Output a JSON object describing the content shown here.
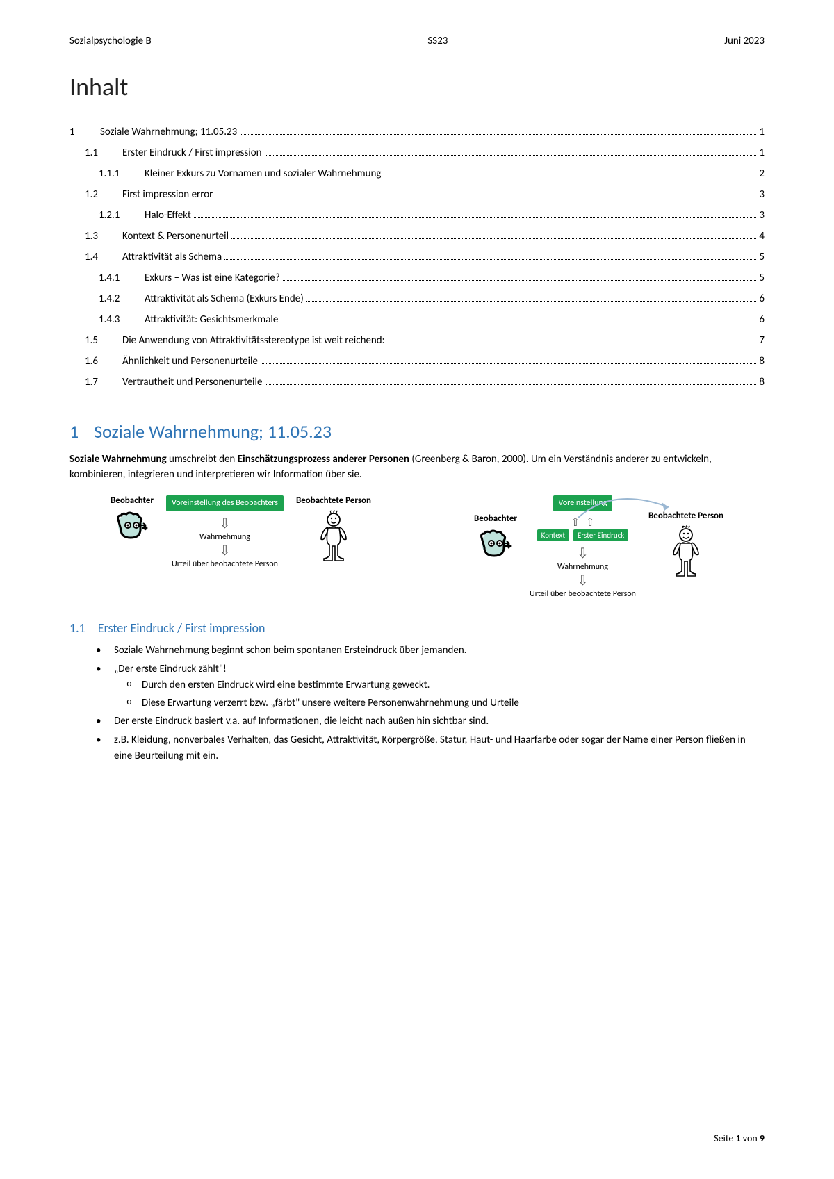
{
  "header": {
    "left": "Sozialpsychologie B",
    "center": "SS23",
    "right": "Juni 2023"
  },
  "toc_heading": "Inhalt",
  "toc": [
    {
      "level": 1,
      "num": "1",
      "title": "Soziale Wahrnehmung; 11.05.23",
      "page": "1"
    },
    {
      "level": 2,
      "num": "1.1",
      "title": "Erster Eindruck / First impression",
      "page": "1"
    },
    {
      "level": 3,
      "num": "1.1.1",
      "title": "Kleiner Exkurs zu Vornamen und sozialer Wahrnehmung",
      "page": "2"
    },
    {
      "level": 2,
      "num": "1.2",
      "title": "First impression error",
      "page": "3"
    },
    {
      "level": 3,
      "num": "1.2.1",
      "title": "Halo-Effekt",
      "page": "3"
    },
    {
      "level": 2,
      "num": "1.3",
      "title": "Kontext & Personenurteil",
      "page": "4"
    },
    {
      "level": 2,
      "num": "1.4",
      "title": "Attraktivität als Schema",
      "page": "5"
    },
    {
      "level": 3,
      "num": "1.4.1",
      "title": "Exkurs – Was ist eine Kategorie?",
      "page": "5"
    },
    {
      "level": 3,
      "num": "1.4.2",
      "title": "Attraktivität als Schema (Exkurs Ende)",
      "page": "6"
    },
    {
      "level": 3,
      "num": "1.4.3",
      "title": "Attraktivität: Gesichtsmerkmale",
      "page": "6"
    },
    {
      "level": 2,
      "num": "1.5",
      "title": "Die Anwendung von Attraktivitätsstereotype ist weit reichend:",
      "page": "7"
    },
    {
      "level": 2,
      "num": "1.6",
      "title": "Ähnlichkeit und Personenurteile",
      "page": "8"
    },
    {
      "level": 2,
      "num": "1.7",
      "title": "Vertrautheit und Personenurteile",
      "page": "8"
    }
  ],
  "section1": {
    "num": "1",
    "title": "Soziale Wahrnehmung; 11.05.23",
    "heading_color": "#2e74b5",
    "para_parts": {
      "p1a": "Soziale Wahrnehmung",
      "p1b": " umschreibt den ",
      "p1c": "Einschätzungsprozess anderer Personen",
      "p1d": " (Greenberg & Baron, 2000). Um ein Verständnis anderer zu entwickeln, kombinieren, integrieren und interpretieren wir Information über sie."
    }
  },
  "diagram": {
    "box_bg": "#1ca24f",
    "box_fg": "#ffffff",
    "observer_label": "Beobachter",
    "observed_label": "Beobachtete Person",
    "preset_long": "Voreinstellung des Beobachters",
    "preset_short": "Voreinstellung",
    "kontext": "Kontext",
    "erster_eindruck": "Erster Eindruck",
    "wahrnehmung": "Wahrnehmung",
    "urteil": "Urteil über beobachtete Person"
  },
  "section11": {
    "num": "1.1",
    "title": "Erster Eindruck / First impression",
    "bullets": [
      "Soziale Wahrnehmung beginnt schon beim spontanen Ersteindruck über jemanden.",
      "„Der erste Eindruck zählt\"!",
      "Der erste Eindruck basiert v.a. auf Informationen, die leicht nach außen hin sichtbar sind.",
      "z.B. Kleidung, nonverbales Verhalten, das Gesicht, Attraktivität, Körpergröße, Statur, Haut- und Haarfarbe oder sogar der Name einer Person fließen in eine Beurteilung mit ein."
    ],
    "sub_bullets": [
      "Durch den ersten Eindruck wird eine bestimmte Erwartung geweckt.",
      "Diese Erwartung verzerrt bzw. „färbt\" unsere weitere Personenwahrnehmung und Urteile"
    ]
  },
  "footer": {
    "prefix": "Seite ",
    "current": "1",
    "of": " von ",
    "total": "9"
  }
}
